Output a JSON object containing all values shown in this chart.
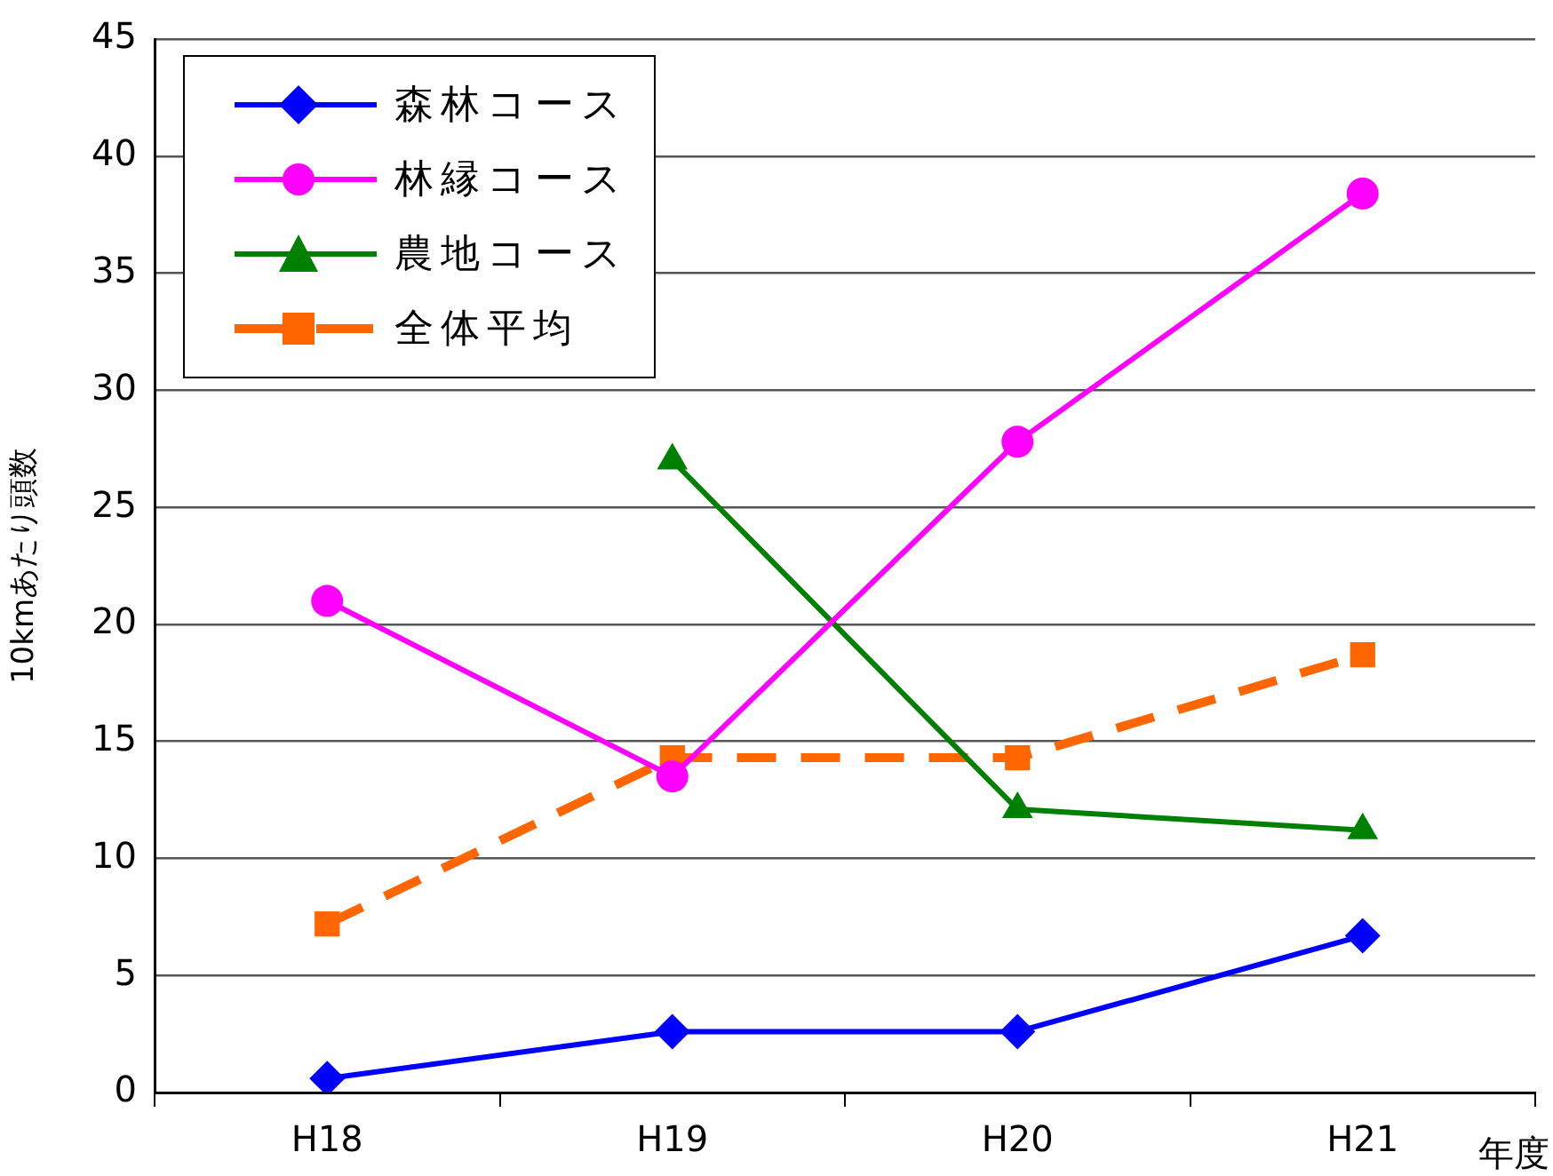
{
  "chart_data": {
    "type": "line",
    "xlabel": "年度",
    "ylabel": "10kmあたり頭数",
    "categories": [
      "H18",
      "H19",
      "H20",
      "H21"
    ],
    "series": [
      {
        "name": "森林コース",
        "color": "#0000ff",
        "marker": "diamond",
        "values": [
          0.6,
          2.6,
          2.6,
          6.7
        ]
      },
      {
        "name": "林縁コース",
        "color": "#ff00ff",
        "marker": "circle",
        "values": [
          21.0,
          13.5,
          27.8,
          38.4
        ]
      },
      {
        "name": "農地コース",
        "color": "#008000",
        "marker": "triangle",
        "values": [
          null,
          27.0,
          12.1,
          11.2
        ]
      },
      {
        "name": "全体平均",
        "color": "#ff6600",
        "marker": "square",
        "line_style": "dashed",
        "values": [
          7.2,
          14.3,
          14.3,
          18.7
        ]
      }
    ],
    "ylim": [
      0,
      45
    ],
    "yticks": [
      0,
      5,
      10,
      15,
      20,
      25,
      30,
      35,
      40,
      45
    ],
    "grid": "y",
    "legend": "top left"
  }
}
